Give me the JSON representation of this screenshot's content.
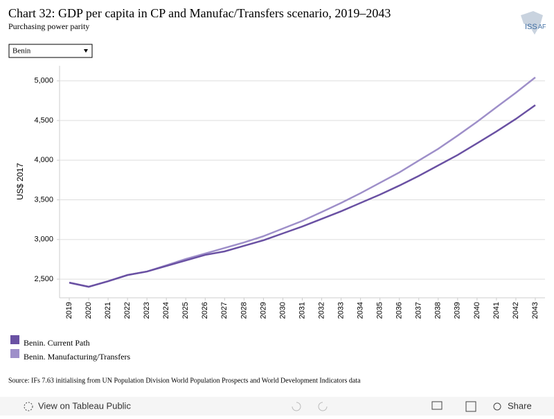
{
  "chart_data": {
    "type": "line",
    "title": "Chart 32: GDP per capita in CP and Manufac/Transfers scenario, 2019–2043",
    "subtitle": "Purchasing power parity",
    "y_label": "US$ 2017",
    "source": "Source: IFs 7.63 initialising from UN Population Division World Population Prospects and World Development Indicators data",
    "x": [
      2019,
      2020,
      2021,
      2022,
      2023,
      2024,
      2025,
      2026,
      2027,
      2028,
      2029,
      2030,
      2031,
      2032,
      2033,
      2034,
      2035,
      2036,
      2037,
      2038,
      2039,
      2040,
      2041,
      2042,
      2043
    ],
    "xlim": [
      2018.5,
      2043.5
    ],
    "ylim": [
      2265,
      5190
    ],
    "yticks": [
      {
        "value": 2500,
        "label": "2,500"
      },
      {
        "value": 3000,
        "label": "3,000"
      },
      {
        "value": 3500,
        "label": "3,500"
      },
      {
        "value": 4000,
        "label": "4,000"
      },
      {
        "value": 4500,
        "label": "4,500"
      },
      {
        "value": 5000,
        "label": "5,000"
      }
    ],
    "grid": true,
    "series": [
      {
        "name": "Benin. Current Path",
        "color": "#6a51a3",
        "values": [
          2456,
          2404,
          2474,
          2552,
          2596,
          2666,
          2736,
          2806,
          2850,
          2920,
          2990,
          3077,
          3164,
          3260,
          3356,
          3461,
          3566,
          3680,
          3802,
          3934,
          4065,
          4213,
          4362,
          4520,
          4694
        ]
      },
      {
        "name": "Benin. Manufacturing/Transfers",
        "color": "#9e8fc9",
        "values": [
          2456,
          2404,
          2474,
          2552,
          2596,
          2675,
          2754,
          2823,
          2893,
          2963,
          3042,
          3138,
          3234,
          3347,
          3461,
          3584,
          3715,
          3846,
          3995,
          4143,
          4310,
          4484,
          4668,
          4851,
          5044
        ]
      }
    ]
  },
  "dropdown": "Benin",
  "logo": {
    "left": "ISS",
    "right": "AF"
  },
  "toolbar": {
    "view": "View on Tableau Public",
    "share": "Share"
  }
}
